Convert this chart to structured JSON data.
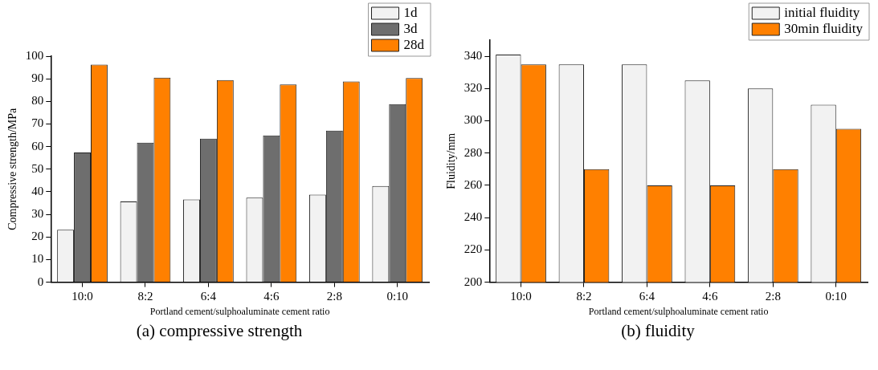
{
  "chart_data": [
    {
      "type": "bar",
      "xlabel": "Portland cement/sulphoaluminate cement ratio",
      "ylabel": "Compressive strength/MPa",
      "categories": [
        "10:0",
        "8:2",
        "6:4",
        "4:6",
        "2:8",
        "0:10"
      ],
      "series": [
        {
          "name": "1d",
          "color": "#f2f2f2",
          "values": [
            23.2,
            35.7,
            36.6,
            37.4,
            38.7,
            42.6
          ]
        },
        {
          "name": "3d",
          "color": "#6e6e6e",
          "values": [
            57.4,
            61.7,
            63.5,
            64.9,
            67.1,
            78.8
          ]
        },
        {
          "name": "28d",
          "color": "#ff8000",
          "values": [
            96.3,
            90.5,
            89.4,
            87.5,
            88.8,
            90.3
          ]
        }
      ],
      "ylim": [
        0,
        100
      ],
      "yticks": [
        0,
        10,
        20,
        30,
        40,
        50,
        60,
        70,
        80,
        90,
        100
      ],
      "grid": false,
      "legend": "top right",
      "annotations": [
        "(a) compressive strength"
      ]
    },
    {
      "type": "bar",
      "xlabel": "Portland cement/sulphoaluminate cement ratio",
      "ylabel": "Fluidity/mm",
      "categories": [
        "10:0",
        "8:2",
        "6:4",
        "4:6",
        "2:8",
        "0:10"
      ],
      "series": [
        {
          "name": "initial fluidity",
          "color": "#f2f2f2",
          "values": [
            341,
            335,
            335,
            325,
            320,
            310
          ]
        },
        {
          "name": "30min fluidity",
          "color": "#ff8000",
          "values": [
            335,
            270,
            260,
            260,
            270,
            295
          ]
        }
      ],
      "ylim": [
        200,
        350
      ],
      "yticks": [
        200,
        220,
        240,
        260,
        280,
        300,
        320,
        340
      ],
      "grid": false,
      "legend": "top right",
      "annotations": [
        "(b) fluidity"
      ]
    }
  ]
}
